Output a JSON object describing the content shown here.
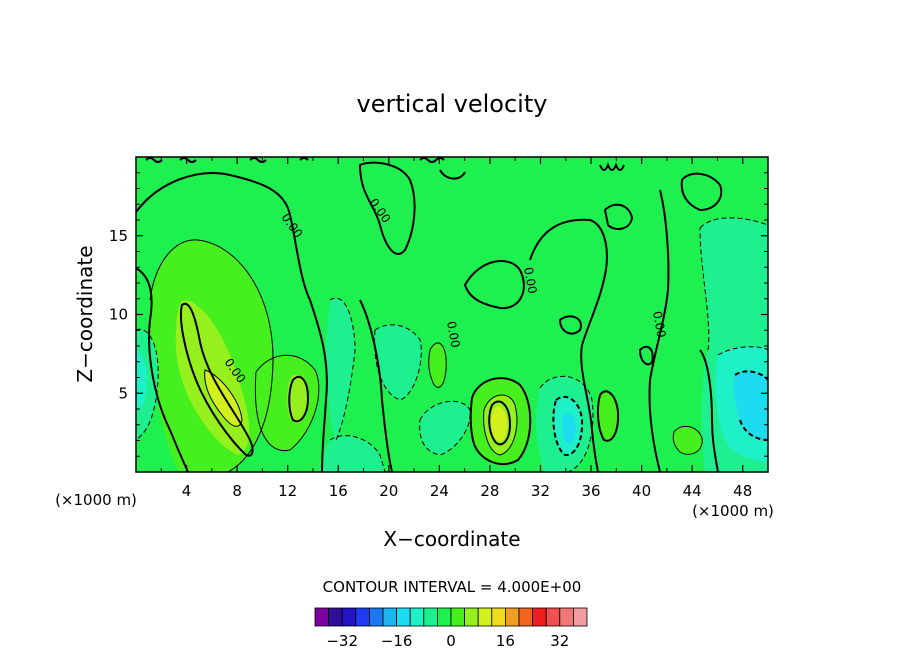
{
  "chart_data": {
    "type": "heatmap",
    "title": "vertical velocity",
    "xlabel": "X−coordinate",
    "ylabel": "Z−coordinate",
    "x_unit_left": "(×1000 m)",
    "x_unit_right": "(×1000 m)",
    "xlim": [
      0,
      50
    ],
    "ylim": [
      0,
      20
    ],
    "xticks": [
      4,
      8,
      12,
      16,
      20,
      24,
      28,
      32,
      36,
      40,
      44,
      48
    ],
    "yticks": [
      5,
      10,
      15
    ],
    "contour_interval_text": "CONTOUR INTERVAL = 4.000E+00",
    "contour_line_label": "0.00",
    "features": [
      {
        "kind": "max",
        "x": 6.5,
        "z": 7.0,
        "value": 10
      },
      {
        "kind": "max",
        "x": 7.5,
        "z": 4.5,
        "value": 12
      },
      {
        "kind": "max",
        "x": 13.0,
        "z": 5.0,
        "value": 8
      },
      {
        "kind": "max",
        "x": 29.0,
        "z": 3.0,
        "value": 14
      },
      {
        "kind": "max",
        "x": 39.0,
        "z": 3.5,
        "value": 6
      },
      {
        "kind": "max",
        "x": 43.0,
        "z": 2.5,
        "value": 5
      },
      {
        "kind": "max",
        "x": 24.0,
        "z": 7.0,
        "value": 5
      },
      {
        "kind": "min",
        "x": 1.0,
        "z": 5.5,
        "value": -6
      },
      {
        "kind": "min",
        "x": 17.5,
        "z": 3.0,
        "value": -4
      },
      {
        "kind": "min",
        "x": 21.0,
        "z": 6.0,
        "value": -4
      },
      {
        "kind": "min",
        "x": 34.0,
        "z": 2.8,
        "value": -9
      },
      {
        "kind": "min",
        "x": 48.0,
        "z": 5.5,
        "value": -10
      },
      {
        "kind": "min",
        "x": 47.5,
        "z": 11.0,
        "value": -4
      },
      {
        "kind": "min",
        "x": 27.5,
        "z": 5.0,
        "value": -3
      }
    ]
  },
  "colorbar": {
    "tick_values": [
      -32,
      -16,
      0,
      16,
      32
    ],
    "tick_labels": [
      "−32",
      "−16",
      "0",
      "16",
      "32"
    ],
    "colors": [
      "#7c00a0",
      "#2e0f9a",
      "#2414c4",
      "#1e3cf0",
      "#1e78f0",
      "#1eb4f0",
      "#1edcf0",
      "#1ef0c8",
      "#1ef090",
      "#1ef050",
      "#46f01e",
      "#96f01e",
      "#d2f01e",
      "#f0dc1e",
      "#f0a01e",
      "#f0641e",
      "#f01e1e",
      "#f05050",
      "#f07878",
      "#f09ca0"
    ]
  }
}
